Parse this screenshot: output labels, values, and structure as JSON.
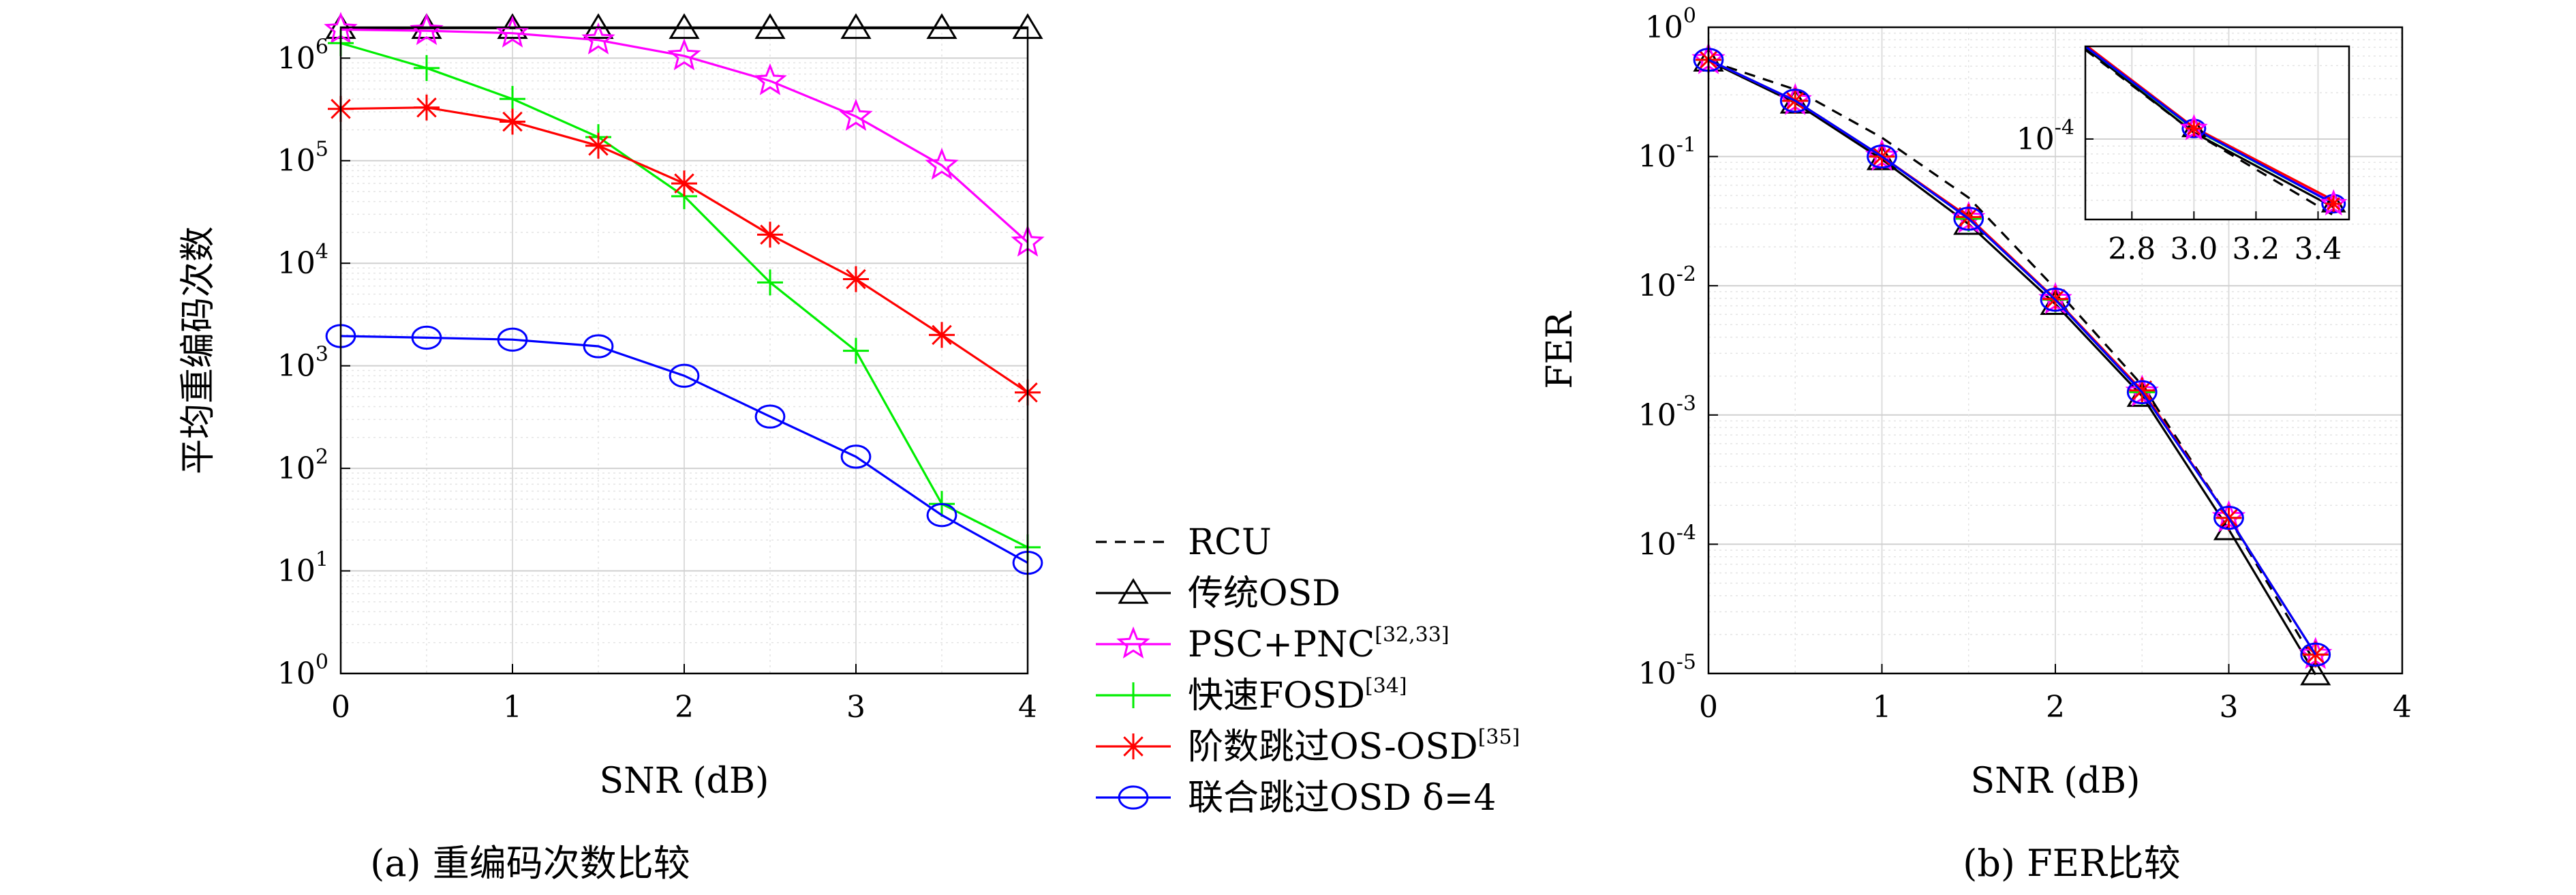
{
  "chart_data": [
    {
      "type": "line",
      "caption": "(a) 重编码次数比较",
      "xlabel": "SNR (dB)",
      "ylabel": "平均重编码次数",
      "yscale": "log",
      "xlim": [
        0,
        4
      ],
      "ylim": [
        1,
        2000000
      ],
      "x_ticks": [
        0,
        1,
        2,
        3,
        4
      ],
      "y_ticks": [
        {
          "value": 1,
          "base": "10",
          "exp": "0"
        },
        {
          "value": 10,
          "base": "10",
          "exp": "1"
        },
        {
          "value": 100,
          "base": "10",
          "exp": "2"
        },
        {
          "value": 1000,
          "base": "10",
          "exp": "3"
        },
        {
          "value": 10000,
          "base": "10",
          "exp": "4"
        },
        {
          "value": 100000,
          "base": "10",
          "exp": "5"
        },
        {
          "value": 1000000,
          "base": "10",
          "exp": "6"
        }
      ],
      "grid": true,
      "series": [
        {
          "name": "传统OSD",
          "color": "#000000",
          "marker": "triangle",
          "x": [
            0,
            0.5,
            1,
            1.5,
            2,
            2.5,
            3,
            3.5,
            4
          ],
          "y": [
            1960000,
            1960000,
            1960000,
            1960000,
            1960000,
            1960000,
            1960000,
            1960000,
            1960000
          ]
        },
        {
          "name": "PSC+PNC",
          "color": "#ff00ff",
          "marker": "star",
          "x": [
            0,
            0.5,
            1,
            1.5,
            2,
            2.5,
            3,
            3.5,
            4
          ],
          "y": [
            1900000,
            1850000,
            1750000,
            1500000,
            1050000,
            600000,
            270000,
            90000,
            16000
          ]
        },
        {
          "name": "快速FOSD",
          "color": "#00ee00",
          "marker": "plus",
          "x": [
            0,
            0.5,
            1,
            1.5,
            2,
            2.5,
            3,
            3.5,
            4
          ],
          "y": [
            1400000,
            800000,
            400000,
            170000,
            45000,
            6500,
            1400,
            45,
            17
          ]
        },
        {
          "name": "阶数跳过OS-OSD",
          "color": "#ff0000",
          "marker": "asterisk",
          "x": [
            0,
            0.5,
            1,
            1.5,
            2,
            2.5,
            3,
            3.5,
            4
          ],
          "y": [
            320000,
            330000,
            240000,
            140000,
            60000,
            19000,
            7000,
            2000,
            550
          ]
        },
        {
          "name": "联合跳过OSD δ=4",
          "color": "#0000ff",
          "marker": "circle",
          "x": [
            0,
            0.5,
            1,
            1.5,
            2,
            2.5,
            3,
            3.5,
            4
          ],
          "y": [
            1950,
            1880,
            1800,
            1550,
            800,
            320,
            130,
            35,
            12
          ]
        }
      ]
    },
    {
      "type": "line",
      "caption": "(b) FER比较",
      "xlabel": "SNR (dB)",
      "ylabel": "FER",
      "yscale": "log",
      "xlim": [
        0,
        4
      ],
      "ylim": [
        1e-05,
        1
      ],
      "x_ticks": [
        0,
        1,
        2,
        3,
        4
      ],
      "y_ticks": [
        {
          "value": 1,
          "base": "10",
          "exp": "0"
        },
        {
          "value": 0.1,
          "base": "10",
          "exp": "-1"
        },
        {
          "value": 0.01,
          "base": "10",
          "exp": "-2"
        },
        {
          "value": 0.001,
          "base": "10",
          "exp": "-3"
        },
        {
          "value": 0.0001,
          "base": "10",
          "exp": "-4"
        },
        {
          "value": 1e-05,
          "base": "10",
          "exp": "-5"
        }
      ],
      "grid": true,
      "series": [
        {
          "name": "RCU",
          "color": "#000000",
          "marker": "none",
          "dashed": true,
          "x": [
            0,
            0.5,
            1,
            1.5,
            2,
            2.5,
            3,
            3.5
          ],
          "y": [
            0.55,
            0.33,
            0.14,
            0.048,
            0.0095,
            0.0017,
            0.00016,
            1.2e-05
          ]
        },
        {
          "name": "传统OSD",
          "color": "#000000",
          "marker": "triangle",
          "x": [
            0,
            0.5,
            1,
            1.5,
            2,
            2.5,
            3,
            3.5
          ],
          "y": [
            0.55,
            0.26,
            0.095,
            0.03,
            0.0072,
            0.0014,
            0.00013,
            9.8e-06
          ]
        },
        {
          "name": "PSC+PNC",
          "color": "#ff00ff",
          "marker": "star",
          "x": [
            0,
            0.5,
            1,
            1.5,
            2,
            2.5,
            3,
            3.5
          ],
          "y": [
            0.56,
            0.27,
            0.1,
            0.033,
            0.0078,
            0.0015,
            0.00016,
            1.4e-05
          ]
        },
        {
          "name": "快速FOSD",
          "color": "#00ee00",
          "marker": "plus",
          "x": [
            0,
            0.5,
            1,
            1.5,
            2,
            2.5,
            3,
            3.5
          ],
          "y": [
            0.56,
            0.27,
            0.1,
            0.033,
            0.0078,
            0.0015,
            0.00016,
            1.4e-05
          ]
        },
        {
          "name": "阶数跳过OS-OSD",
          "color": "#ff0000",
          "marker": "asterisk",
          "x": [
            0,
            0.5,
            1,
            1.5,
            2,
            2.5,
            3,
            3.5
          ],
          "y": [
            0.56,
            0.27,
            0.1,
            0.034,
            0.0079,
            0.00155,
            0.00016,
            1.4e-05
          ]
        },
        {
          "name": "联合跳过OSD δ=4",
          "color": "#0000ff",
          "marker": "circle",
          "x": [
            0,
            0.5,
            1,
            1.5,
            2,
            2.5,
            3,
            3.5
          ],
          "y": [
            0.56,
            0.27,
            0.1,
            0.033,
            0.0078,
            0.0015,
            0.00016,
            1.4e-05
          ]
        }
      ],
      "inset": {
        "xlim": [
          2.65,
          3.5
        ],
        "ylim": [
          3e-05,
          0.0004
        ],
        "x_ticks": [
          "2.8",
          "3.0",
          "3.2",
          "3.4"
        ],
        "x_tick_values": [
          2.8,
          3.0,
          3.2,
          3.4
        ],
        "y_ticks": [
          {
            "value": 0.0001,
            "base": "10",
            "exp": "-4"
          }
        ],
        "series": [
          {
            "name": "RCU",
            "color": "#000000",
            "dashed": true,
            "x": [
              2.65,
              3.0,
              3.45
            ],
            "y": [
              0.00038,
              0.00011,
              3.2e-05
            ]
          },
          {
            "name": "传统OSD",
            "color": "#000000",
            "x": [
              2.65,
              3.0,
              3.45
            ],
            "y": [
              0.00039,
              0.00011,
              3.6e-05
            ]
          },
          {
            "name": "PSC+PNC",
            "color": "#ff00ff",
            "x": [
              2.65,
              3.0,
              3.45
            ],
            "y": [
              0.00041,
              0.000118,
              3.9e-05
            ]
          },
          {
            "name": "快速FOSD",
            "color": "#00ee00",
            "x": [
              2.65,
              3.0,
              3.45
            ],
            "y": [
              0.0004,
              0.000116,
              3.8e-05
            ]
          },
          {
            "name": "阶数跳过OS-OSD",
            "color": "#ff0000",
            "x": [
              2.65,
              3.0,
              3.45
            ],
            "y": [
              0.00041,
              0.000119,
              4e-05
            ]
          },
          {
            "name": "联合跳过OSD δ=4",
            "color": "#0000ff",
            "x": [
              2.65,
              3.0,
              3.45
            ],
            "y": [
              0.0004,
              0.000117,
              3.8e-05
            ]
          }
        ]
      }
    }
  ],
  "legend": [
    {
      "marker": "none",
      "dashed": true,
      "color": "#000000",
      "text": "RCU",
      "sup": ""
    },
    {
      "marker": "triangle",
      "color": "#000000",
      "text": "传统OSD",
      "sup": ""
    },
    {
      "marker": "star",
      "color": "#ff00ff",
      "text": "PSC+PNC",
      "sup": "[32,33]"
    },
    {
      "marker": "plus",
      "color": "#00ee00",
      "text": "快速FOSD",
      "sup": "[34]"
    },
    {
      "marker": "asterisk",
      "color": "#ff0000",
      "text": "阶数跳过OS-OSD",
      "sup": "[35]"
    },
    {
      "marker": "circle",
      "color": "#0000ff",
      "text": "联合跳过OSD δ=4",
      "sup": ""
    }
  ]
}
